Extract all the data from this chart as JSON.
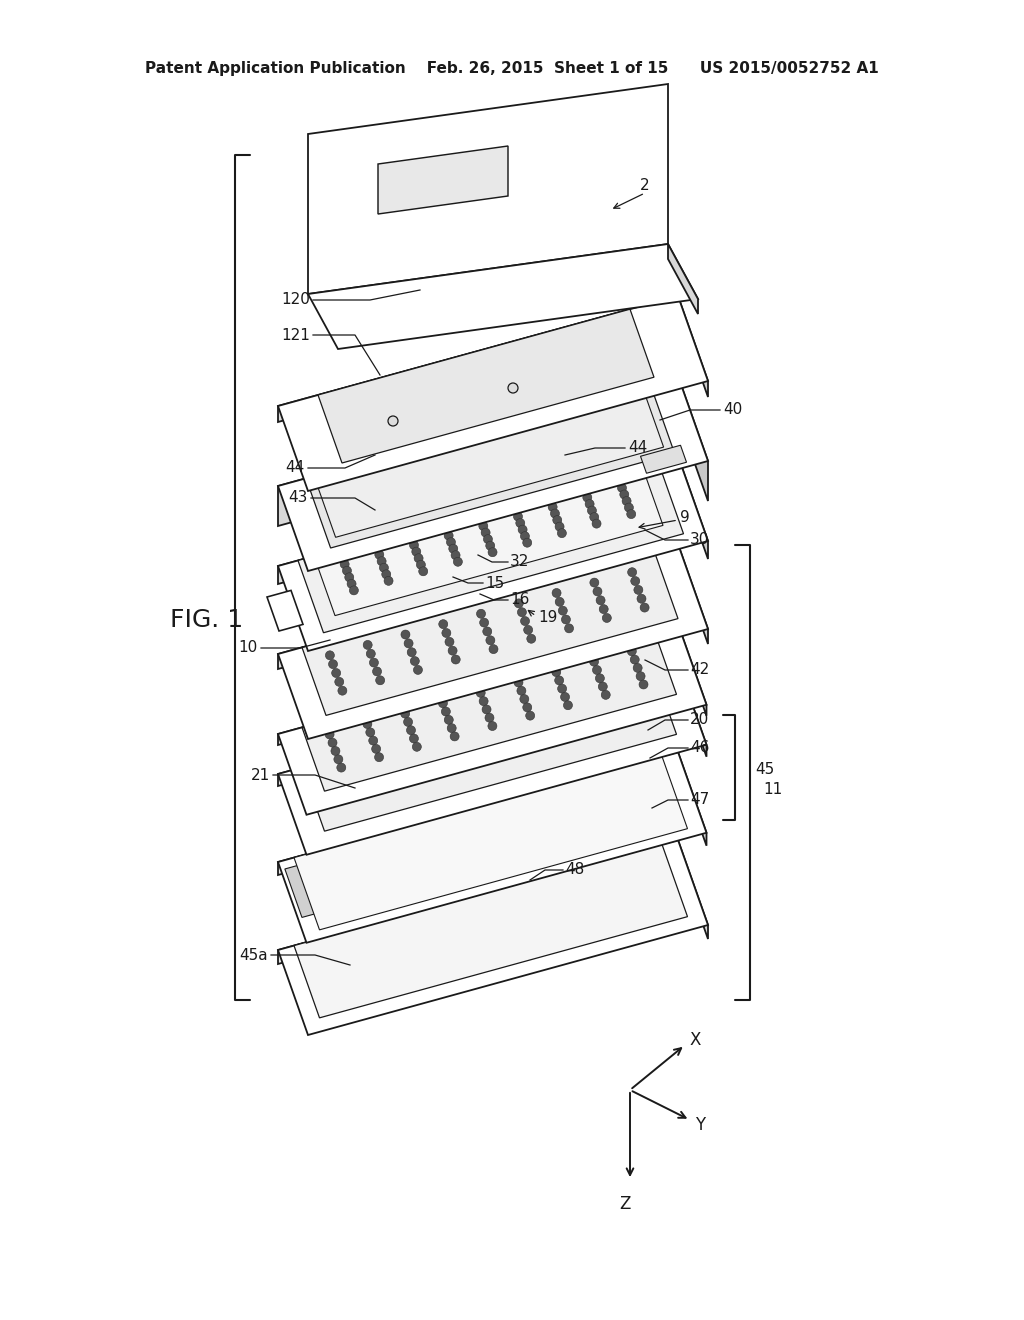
{
  "bg_color": "#ffffff",
  "line_color": "#1a1a1a",
  "header_left": "Patent Application Publication",
  "header_mid": "Feb. 26, 2015  Sheet 1 of 15",
  "header_right": "US 2015/0052752 A1",
  "fig_label": "FIG. 1",
  "axis_labels": [
    "X",
    "Y",
    "Z"
  ],
  "component_labels": [
    "2",
    "120",
    "121",
    "40",
    "44",
    "44",
    "43",
    "9",
    "30",
    "32",
    "15",
    "16",
    "19",
    "10",
    "42",
    "20",
    "46",
    "21",
    "45",
    "47",
    "48",
    "45a",
    "11"
  ]
}
